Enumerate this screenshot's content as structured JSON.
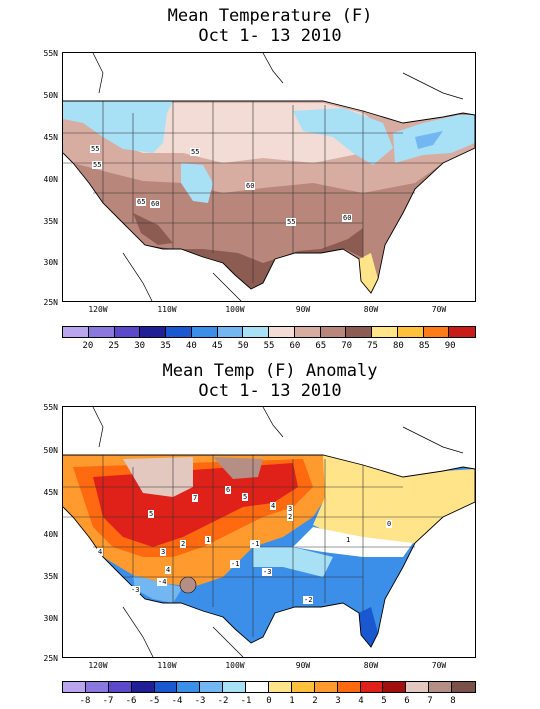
{
  "panel1": {
    "title_line1": "Mean Temperature (F)",
    "title_line2": "Oct 1- 13 2010",
    "lat_labels": [
      "55N",
      "50N",
      "45N",
      "40N",
      "35N",
      "30N",
      "25N"
    ],
    "lon_labels": [
      "120W",
      "110W",
      "100W",
      "90W",
      "80W",
      "70W"
    ],
    "colorbar_values": [
      "20",
      "25",
      "30",
      "35",
      "40",
      "45",
      "50",
      "55",
      "60",
      "65",
      "70",
      "75",
      "80",
      "85",
      "90"
    ],
    "colorbar_colors": [
      "#b9a6ee",
      "#8b78de",
      "#5a4acb",
      "#1f1f96",
      "#1a58cf",
      "#3b8fe8",
      "#72b6f2",
      "#a8e0f6",
      "#f2dcd5",
      "#d7ada2",
      "#b8867b",
      "#8c5b52",
      "#ffe48a",
      "#ffc13b",
      "#ff7a18",
      "#c81d16"
    ],
    "contour_labels": [
      "55",
      "55",
      "60",
      "65",
      "60",
      "55",
      "60",
      "55"
    ]
  },
  "panel2": {
    "title_line1": "Mean Temp (F) Anomaly",
    "title_line2": "Oct 1- 13 2010",
    "lat_labels": [
      "55N",
      "50N",
      "45N",
      "40N",
      "35N",
      "30N",
      "25N"
    ],
    "lon_labels": [
      "120W",
      "110W",
      "100W",
      "90W",
      "80W",
      "70W"
    ],
    "colorbar_values": [
      "-8",
      "-7",
      "-6",
      "-5",
      "-4",
      "-3",
      "-2",
      "-1",
      "0",
      "1",
      "2",
      "3",
      "4",
      "5",
      "6",
      "7",
      "8"
    ],
    "colorbar_colors": [
      "#b9a6ee",
      "#8b78de",
      "#5a4acb",
      "#1f1f96",
      "#1a58cf",
      "#3b8fe8",
      "#72b6f2",
      "#a8e0f6",
      "#ffffff",
      "#ffe48a",
      "#ffc13b",
      "#ff9a2e",
      "#ff6a10",
      "#e0211a",
      "#a0100e",
      "#e3c8c0",
      "#b58f86",
      "#7a5048"
    ],
    "contour_labels": [
      "6",
      "5",
      "4",
      "3",
      "2",
      "7",
      "5",
      "4",
      "4",
      "3",
      "2",
      "1",
      "-1",
      "-3",
      "-2",
      "-1",
      "-4",
      "-3",
      "1",
      "0"
    ]
  }
}
